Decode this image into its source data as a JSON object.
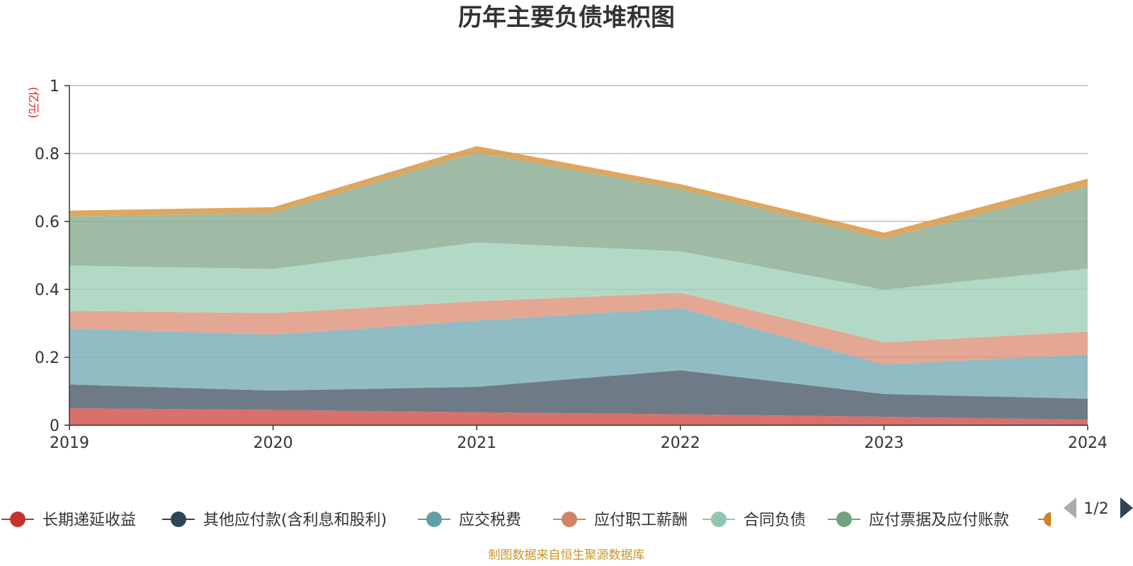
{
  "chart_data": {
    "type": "area",
    "stacked": true,
    "title": "历年主要负债堆积图",
    "unit_label": "(亿元)",
    "x": [
      "2019",
      "2020",
      "2021",
      "2022",
      "2023",
      "2024"
    ],
    "ylim": [
      0,
      1
    ],
    "yticks": [
      "0",
      "0.2",
      "0.4",
      "0.6",
      "0.8",
      "1"
    ],
    "grid": true,
    "legend_position": "bottom",
    "series": [
      {
        "name": "长期递延收益",
        "color": "#d9706c",
        "legend_color": "#c23531",
        "values": [
          0.05,
          0.045,
          0.038,
          0.032,
          0.025,
          0.016
        ]
      },
      {
        "name": "其他应付款(含利息和股利)",
        "color": "#6e7b87",
        "legend_color": "#2f4554",
        "values": [
          0.07,
          0.057,
          0.075,
          0.13,
          0.067,
          0.062
        ]
      },
      {
        "name": "应交税费",
        "color": "#91bcc3",
        "legend_color": "#61a0a8",
        "values": [
          0.165,
          0.165,
          0.195,
          0.183,
          0.087,
          0.13
        ]
      },
      {
        "name": "应付职工薪酬",
        "color": "#e3a794",
        "legend_color": "#d48265",
        "values": [
          0.052,
          0.063,
          0.057,
          0.045,
          0.065,
          0.068
        ]
      },
      {
        "name": "合同负债",
        "color": "#b2d9c6",
        "legend_color": "#91c7ae",
        "values": [
          0.133,
          0.13,
          0.173,
          0.122,
          0.155,
          0.185
        ]
      },
      {
        "name": "应付票据及应付账款",
        "color": "#9fbba6",
        "legend_color": "#749f83",
        "values": [
          0.145,
          0.165,
          0.265,
          0.183,
          0.15,
          0.243
        ]
      },
      {
        "name": "",
        "color": "#dda760",
        "legend_color": "#ca8622",
        "values": [
          0.017,
          0.017,
          0.019,
          0.015,
          0.018,
          0.022
        ]
      }
    ]
  },
  "legend": {
    "page": "1/2"
  },
  "footer": {
    "source": "制图数据来自恒生聚源数据库"
  }
}
